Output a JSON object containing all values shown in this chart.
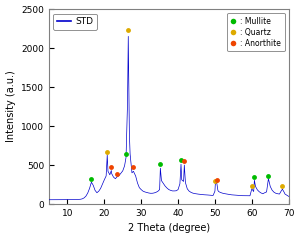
{
  "title": "",
  "xlabel": "2 Theta (degree)",
  "ylabel": "Intensity (a.u.)",
  "xlim": [
    5,
    70
  ],
  "ylim": [
    0,
    2500
  ],
  "yticks": [
    0,
    500,
    1000,
    1500,
    2000,
    2500
  ],
  "xticks": [
    10,
    20,
    30,
    40,
    50,
    60,
    70
  ],
  "line_color": "#0000CC",
  "line_label": "STD",
  "background_color": "#ffffff",
  "mullite_color": "#00bb00",
  "quartz_color": "#ddaa00",
  "anorthite_color": "#ee4400",
  "mullite_peaks": [
    16.5,
    25.9,
    35.2,
    40.8,
    60.7,
    64.5
  ],
  "quartz_peaks": [
    20.8,
    26.5,
    50.1,
    60.0,
    68.3
  ],
  "anorthite_peaks": [
    21.9,
    23.5,
    27.9,
    41.7,
    50.5
  ],
  "peak_offsets": {
    "mullite": [
      40,
      40,
      50,
      55,
      40,
      40
    ],
    "quartz": [
      40,
      80,
      40,
      40,
      40
    ],
    "anorthite": [
      40,
      40,
      50,
      55,
      40
    ]
  },
  "xdata": [
    5.0,
    5.3,
    5.6,
    6.0,
    6.5,
    7.0,
    7.5,
    8.0,
    8.5,
    9.0,
    9.5,
    10.0,
    10.5,
    11.0,
    11.5,
    12.0,
    12.5,
    13.0,
    13.5,
    14.0,
    14.5,
    15.0,
    15.5,
    16.0,
    16.5,
    17.0,
    17.5,
    18.0,
    18.5,
    19.0,
    19.5,
    20.0,
    20.5,
    20.8,
    21.0,
    21.5,
    21.9,
    22.0,
    22.5,
    23.0,
    23.5,
    24.0,
    24.5,
    25.0,
    25.5,
    25.9,
    26.3,
    26.5,
    26.8,
    27.0,
    27.5,
    27.9,
    28.2,
    28.5,
    29.0,
    29.5,
    30.0,
    30.5,
    31.0,
    31.5,
    32.0,
    32.5,
    33.0,
    33.5,
    34.0,
    34.5,
    35.0,
    35.2,
    35.5,
    36.0,
    36.5,
    37.0,
    37.5,
    38.0,
    38.5,
    39.0,
    39.5,
    40.0,
    40.5,
    40.8,
    41.0,
    41.5,
    41.7,
    42.0,
    42.5,
    43.0,
    43.5,
    44.0,
    44.5,
    45.0,
    45.5,
    46.0,
    46.5,
    47.0,
    47.5,
    48.0,
    48.5,
    49.0,
    49.5,
    50.0,
    50.1,
    50.5,
    50.8,
    51.0,
    51.5,
    52.0,
    52.5,
    53.0,
    53.5,
    54.0,
    54.5,
    55.0,
    55.5,
    56.0,
    56.5,
    57.0,
    57.5,
    58.0,
    58.5,
    59.0,
    59.5,
    60.0,
    60.5,
    60.7,
    61.0,
    61.5,
    62.0,
    62.5,
    63.0,
    63.5,
    64.0,
    64.5,
    65.0,
    65.5,
    66.0,
    66.5,
    67.0,
    67.5,
    68.0,
    68.3,
    68.8,
    69.0,
    69.5,
    70.0
  ],
  "ydata": [
    55,
    55,
    55,
    54,
    54,
    54,
    54,
    54,
    55,
    55,
    56,
    57,
    58,
    59,
    59,
    58,
    58,
    59,
    61,
    66,
    78,
    100,
    140,
    200,
    280,
    240,
    175,
    145,
    165,
    200,
    255,
    310,
    360,
    630,
    420,
    375,
    430,
    390,
    345,
    325,
    350,
    365,
    395,
    425,
    490,
    600,
    1300,
    2150,
    900,
    640,
    400,
    420,
    390,
    360,
    270,
    210,
    185,
    165,
    155,
    148,
    142,
    138,
    138,
    142,
    150,
    162,
    185,
    460,
    300,
    265,
    230,
    205,
    185,
    175,
    168,
    168,
    170,
    185,
    260,
    510,
    310,
    290,
    500,
    275,
    195,
    165,
    150,
    140,
    134,
    130,
    127,
    124,
    122,
    119,
    118,
    116,
    114,
    112,
    110,
    165,
    255,
    270,
    175,
    160,
    148,
    140,
    134,
    130,
    126,
    122,
    118,
    116,
    113,
    111,
    109,
    108,
    107,
    107,
    106,
    106,
    106,
    195,
    160,
    305,
    225,
    182,
    158,
    142,
    132,
    145,
    155,
    325,
    225,
    178,
    152,
    138,
    132,
    128,
    170,
    190,
    148,
    128,
    113,
    98
  ]
}
